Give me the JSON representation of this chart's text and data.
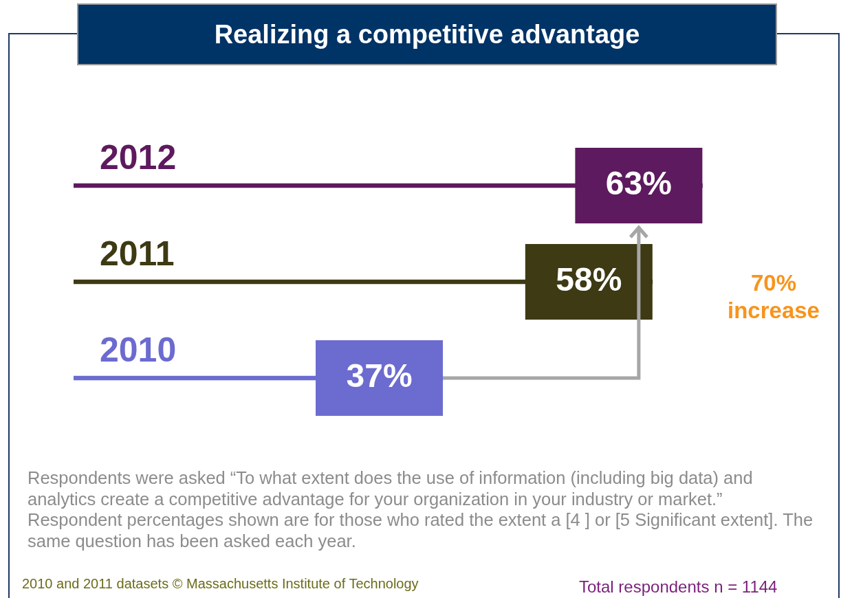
{
  "chart_data": {
    "type": "bar",
    "orientation": "horizontal",
    "title": "Realizing a competitive advantage",
    "categories": [
      "2012",
      "2011",
      "2010"
    ],
    "values": [
      63,
      58,
      37
    ],
    "colors": [
      "#5e1a5e",
      "#3d3a14",
      "#6b6bd0"
    ],
    "data_labels": true,
    "value_labels": [
      "63%",
      "58%",
      "37%"
    ],
    "annotations": [
      "70% increase",
      "Respondents were asked  “To what extent does the use of information (including big data) and analytics create a competitive advantage for your organization in your industry or market.”  Respondent percentages shown are for those who rated the extent a [4 ] or [5  Significant extent].  The same question has been asked each year.",
      "2010 and 2011 datasets © Massachusetts Institute of Technology",
      "Total respondents n = 1144"
    ]
  }
}
